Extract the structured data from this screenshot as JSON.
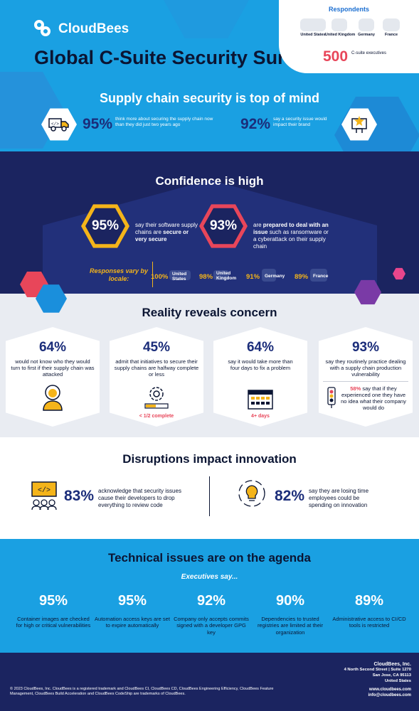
{
  "brand": {
    "name": "CloudBees"
  },
  "hero": {
    "title": "Global C-Suite Security Survey"
  },
  "respondents": {
    "title": "Respondents",
    "countries": [
      "United States",
      "United Kingdom",
      "Germany",
      "France"
    ],
    "number": "500",
    "label": "C-suite executives"
  },
  "supply_chain": {
    "heading": "Supply chain security is top of mind",
    "stats": [
      {
        "pct": "95%",
        "text": "think more about securing the supply chain now than they did just two years ago",
        "icon": "truck-icon"
      },
      {
        "pct": "92%",
        "text": "say a security issue would impact their brand",
        "icon": "star-hand-icon"
      }
    ]
  },
  "confidence": {
    "heading": "Confidence is high",
    "stats": [
      {
        "pct": "95%",
        "text_pre": "say their software supply chains are ",
        "text_bold": "secure or very secure",
        "text_post": ""
      },
      {
        "pct": "93%",
        "text_pre": "are ",
        "text_bold": "prepared to deal with an issue",
        "text_post": " such as ransomware or a cyberattack on their supply chain"
      }
    ],
    "locale_label": "Responses vary by locale:",
    "locales": [
      {
        "pct": "100%",
        "name": "United States"
      },
      {
        "pct": "98%",
        "name": "United Kingdom"
      },
      {
        "pct": "91%",
        "name": "Germany"
      },
      {
        "pct": "89%",
        "name": "France"
      }
    ]
  },
  "reality": {
    "heading": "Reality reveals concern",
    "cards": [
      {
        "pct": "64%",
        "text": "would not know who they would turn to first if their supply chain was attacked",
        "icon": "person-icon",
        "note": ""
      },
      {
        "pct": "45%",
        "text": "admit that initiatives to secure their supply chains are halfway complete or less",
        "icon": "gear-progress-icon",
        "note": "< 1/2 complete"
      },
      {
        "pct": "64%",
        "text": "say it would take more than four days to fix a problem",
        "icon": "calendar-icon",
        "note": "4+ days"
      },
      {
        "pct": "93%",
        "text": "say they routinely practice dealing with a supply chain production vulnerability",
        "icon": "traffic-light-icon",
        "note": ""
      }
    ],
    "side_note": {
      "pct": "58%",
      "text": " say that if they experienced one they have no idea what their company would do"
    }
  },
  "disruptions": {
    "heading": "Disruptions impact innovation",
    "stats": [
      {
        "pct": "83%",
        "text": "acknowledge that security issues cause their developers to drop everything to review code",
        "icon": "code-team-icon"
      },
      {
        "pct": "82%",
        "text": "say they are losing time employees could be spending on innovation",
        "icon": "lightbulb-icon"
      }
    ]
  },
  "technical": {
    "heading": "Technical issues are on the agenda",
    "subheading": "Executives say...",
    "stats": [
      {
        "pct": "95%",
        "text": "Container images are checked for high or critical vulnerabilities"
      },
      {
        "pct": "95%",
        "text": "Automation access keys are set to expire automatically"
      },
      {
        "pct": "92%",
        "text": "Company only accepts commits signed with a developer GPG key"
      },
      {
        "pct": "90%",
        "text": "Dependencies to trusted registries are limited at their organization"
      },
      {
        "pct": "89%",
        "text": "Administrative access to CI/CD tools is restricted"
      }
    ]
  },
  "footer": {
    "legal": "© 2023 CloudBees, Inc. CloudBees is a registered trademark and CloudBees CI, CloudBees CD, CloudBees Engineering Efficiency, CloudBees Feature Management, CloudBees Build Acceleration and CloudBees CodeShip are trademarks of CloudBees.",
    "company": "CloudBees, Inc.",
    "address1": "4 North Second Street | Suite 1270",
    "address2": "San Jose, CA 95113",
    "address3": "United States",
    "website": "www.cloudbees.com",
    "email": "info@cloudbees.com"
  },
  "colors": {
    "accent_blue": "#1aa0e2",
    "navy": "#1b2460",
    "yellow": "#f4b41a",
    "coral": "#e8465a",
    "dark_text": "#0b1533"
  }
}
